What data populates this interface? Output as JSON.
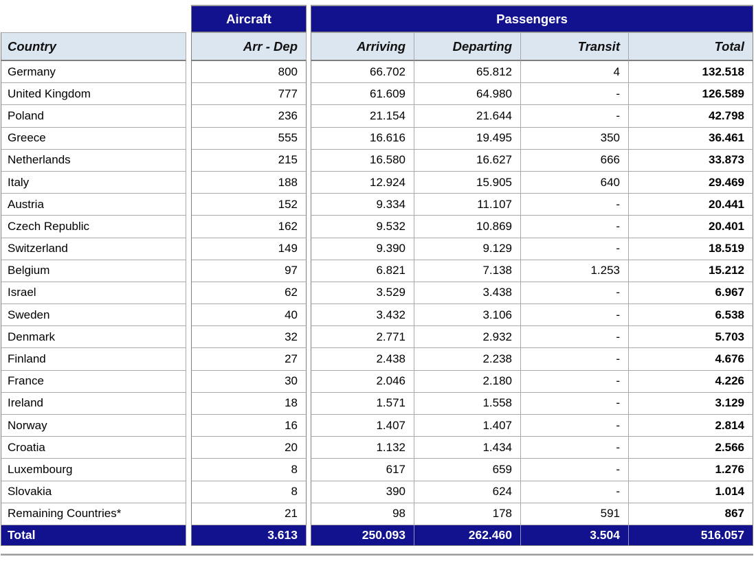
{
  "colors": {
    "header_navy": "#12128f",
    "header_light_band": "#dce6f1",
    "grid_border": "#a9a9a9"
  },
  "table": {
    "group_headers": {
      "aircraft": "Aircraft",
      "passengers": "Passengers"
    },
    "columns": {
      "country": "Country",
      "arr_dep": "Arr - Dep",
      "arriving": "Arriving",
      "departing": "Departing",
      "transit": "Transit",
      "total": "Total"
    },
    "rows": [
      {
        "country": "Germany",
        "arr_dep": "800",
        "arriving": "66.702",
        "departing": "65.812",
        "transit": "4",
        "total": "132.518"
      },
      {
        "country": "United Kingdom",
        "arr_dep": "777",
        "arriving": "61.609",
        "departing": "64.980",
        "transit": "-",
        "total": "126.589"
      },
      {
        "country": "Poland",
        "arr_dep": "236",
        "arriving": "21.154",
        "departing": "21.644",
        "transit": "-",
        "total": "42.798"
      },
      {
        "country": "Greece",
        "arr_dep": "555",
        "arriving": "16.616",
        "departing": "19.495",
        "transit": "350",
        "total": "36.461"
      },
      {
        "country": "Netherlands",
        "arr_dep": "215",
        "arriving": "16.580",
        "departing": "16.627",
        "transit": "666",
        "total": "33.873"
      },
      {
        "country": "Italy",
        "arr_dep": "188",
        "arriving": "12.924",
        "departing": "15.905",
        "transit": "640",
        "total": "29.469"
      },
      {
        "country": "Austria",
        "arr_dep": "152",
        "arriving": "9.334",
        "departing": "11.107",
        "transit": "-",
        "total": "20.441"
      },
      {
        "country": "Czech Republic",
        "arr_dep": "162",
        "arriving": "9.532",
        "departing": "10.869",
        "transit": "-",
        "total": "20.401"
      },
      {
        "country": "Switzerland",
        "arr_dep": "149",
        "arriving": "9.390",
        "departing": "9.129",
        "transit": "-",
        "total": "18.519"
      },
      {
        "country": "Belgium",
        "arr_dep": "97",
        "arriving": "6.821",
        "departing": "7.138",
        "transit": "1.253",
        "total": "15.212"
      },
      {
        "country": "Israel",
        "arr_dep": "62",
        "arriving": "3.529",
        "departing": "3.438",
        "transit": "-",
        "total": "6.967"
      },
      {
        "country": "Sweden",
        "arr_dep": "40",
        "arriving": "3.432",
        "departing": "3.106",
        "transit": "-",
        "total": "6.538"
      },
      {
        "country": "Denmark",
        "arr_dep": "32",
        "arriving": "2.771",
        "departing": "2.932",
        "transit": "-",
        "total": "5.703"
      },
      {
        "country": "Finland",
        "arr_dep": "27",
        "arriving": "2.438",
        "departing": "2.238",
        "transit": "-",
        "total": "4.676"
      },
      {
        "country": "France",
        "arr_dep": "30",
        "arriving": "2.046",
        "departing": "2.180",
        "transit": "-",
        "total": "4.226"
      },
      {
        "country": "Ireland",
        "arr_dep": "18",
        "arriving": "1.571",
        "departing": "1.558",
        "transit": "-",
        "total": "3.129"
      },
      {
        "country": "Norway",
        "arr_dep": "16",
        "arriving": "1.407",
        "departing": "1.407",
        "transit": "-",
        "total": "2.814"
      },
      {
        "country": "Croatia",
        "arr_dep": "20",
        "arriving": "1.132",
        "departing": "1.434",
        "transit": "-",
        "total": "2.566"
      },
      {
        "country": "Luxembourg",
        "arr_dep": "8",
        "arriving": "617",
        "departing": "659",
        "transit": "-",
        "total": "1.276"
      },
      {
        "country": "Slovakia",
        "arr_dep": "8",
        "arriving": "390",
        "departing": "624",
        "transit": "-",
        "total": "1.014"
      },
      {
        "country": "Remaining Countries*",
        "arr_dep": "21",
        "arriving": "98",
        "departing": "178",
        "transit": "591",
        "total": "867"
      }
    ],
    "totals": {
      "label": "Total",
      "arr_dep": "3.613",
      "arriving": "250.093",
      "departing": "262.460",
      "transit": "3.504",
      "total": "516.057"
    }
  }
}
